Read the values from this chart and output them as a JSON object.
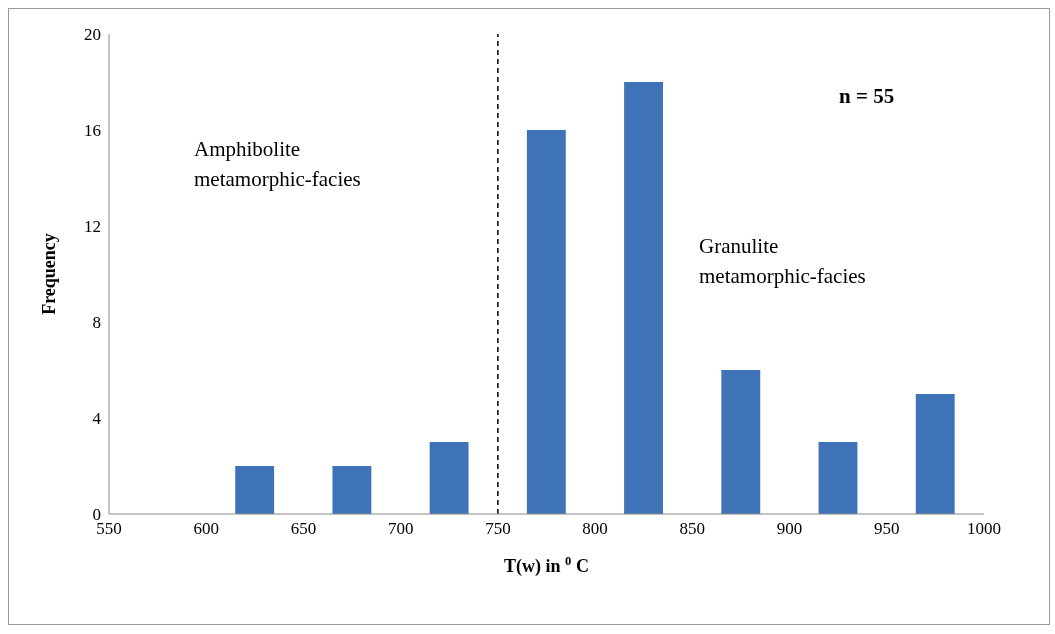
{
  "chart_data": {
    "type": "histogram",
    "bins": [
      550,
      600,
      650,
      700,
      750,
      800,
      850,
      900,
      950,
      1000
    ],
    "values": [
      0,
      2,
      2,
      3,
      16,
      18,
      6,
      3,
      5
    ],
    "color": "#3f73b8",
    "xlabel": "T(w) in $^{0}$ C",
    "ylabel": "Frequency",
    "xlim": [
      550,
      1000
    ],
    "xticks": [
      550,
      600,
      650,
      700,
      750,
      800,
      850,
      900,
      950,
      1000
    ],
    "ylim": [
      0,
      20
    ],
    "yticks": [
      0,
      4,
      8,
      12,
      16,
      20
    ],
    "ref_lines": [
      {
        "axis": "x",
        "value": 750,
        "color": "#000000",
        "line_style": "dashed"
      }
    ],
    "annotations": [
      "n = 55",
      "Amphibolite\nmetamorphic-facies",
      "Granulite\nmetamorphic-facies"
    ]
  }
}
